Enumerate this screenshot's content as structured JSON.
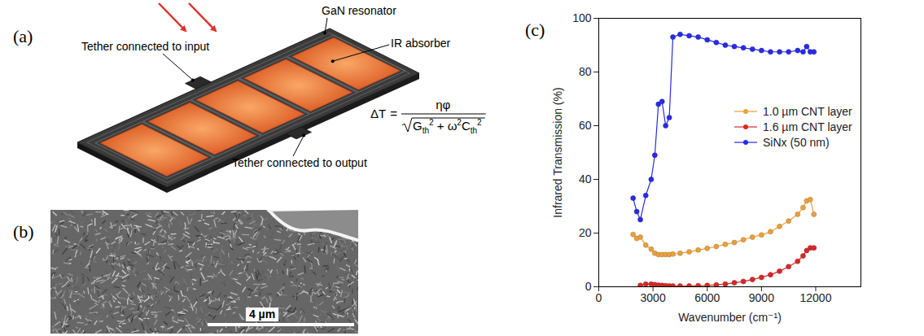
{
  "panels": {
    "a": "(a)",
    "b": "(b)",
    "c": "(c)"
  },
  "diagram": {
    "labels": {
      "resonator": "GaN resonator",
      "input": "Tether connected to input",
      "absorber": "IR absorber",
      "output": "Tether connected to output"
    },
    "formula": {
      "lhs": "ΔT",
      "equals": "=",
      "numerator": "ηφ",
      "denominator": [
        {
          "base": "G",
          "sub": "th",
          "sup": "2"
        },
        {
          "op": "+"
        },
        {
          "base": "ω",
          "sup": "2"
        },
        {
          "base": "C",
          "sub": "th",
          "sup": "2"
        }
      ]
    }
  },
  "image": {
    "scale_bar": "4 µm"
  },
  "chart_data": {
    "type": "line",
    "x_label": "Wavenumber (cm⁻¹)",
    "y_label": "Infrared Transmission (%)",
    "x": [
      1900,
      2100,
      2300,
      2600,
      2900,
      3100,
      3300,
      3500,
      3700,
      3900,
      4100,
      4500,
      5000,
      5500,
      6000,
      6500,
      7000,
      7500,
      8000,
      8500,
      9000,
      9500,
      10000,
      10500,
      11000,
      11300,
      11500,
      11700,
      11900
    ],
    "series": [
      {
        "name": "1.0 µm CNT layer",
        "color": "#e8a040",
        "marker": "circle",
        "line_style": "solid",
        "values": [
          19.5,
          18,
          18.5,
          15.5,
          14,
          12.5,
          12,
          12,
          12,
          12,
          12.2,
          12.5,
          13,
          13.7,
          14.3,
          15,
          15.8,
          16.5,
          17.5,
          18.5,
          19.3,
          20.5,
          22.5,
          24.5,
          27,
          29.5,
          32,
          32.5,
          27
        ]
      },
      {
        "name": "1.6 µm CNT layer",
        "color": "#d42a2a",
        "marker": "circle",
        "line_style": "solid",
        "values": [
          null,
          null,
          0.5,
          1,
          1,
          0.8,
          0.6,
          0.5,
          0.4,
          0.3,
          0.3,
          0.3,
          0.3,
          0.4,
          0.5,
          0.7,
          1,
          1.5,
          2,
          2.7,
          3.5,
          4.5,
          5.8,
          7.5,
          9.5,
          11.5,
          13.5,
          14.5,
          14.5
        ]
      },
      {
        "name": "SiNx (50 nm)",
        "color": "#2a2ae8",
        "marker": "circle",
        "line_style": "solid",
        "values": [
          33,
          28,
          25,
          34,
          40,
          49,
          68,
          69,
          60,
          63,
          93,
          94,
          93.5,
          93,
          92,
          91,
          90,
          89.5,
          89,
          88.5,
          88,
          87.5,
          87.5,
          87.5,
          88,
          87.5,
          89.5,
          87.5,
          87.5
        ]
      }
    ],
    "xlim": [
      0,
      14500
    ],
    "xticks": [
      0,
      3000,
      6000,
      9000,
      12000
    ],
    "ylim": [
      0,
      100
    ],
    "yticks": [
      0,
      20,
      40,
      60,
      80,
      100
    ],
    "grid": false,
    "legend": "right"
  }
}
